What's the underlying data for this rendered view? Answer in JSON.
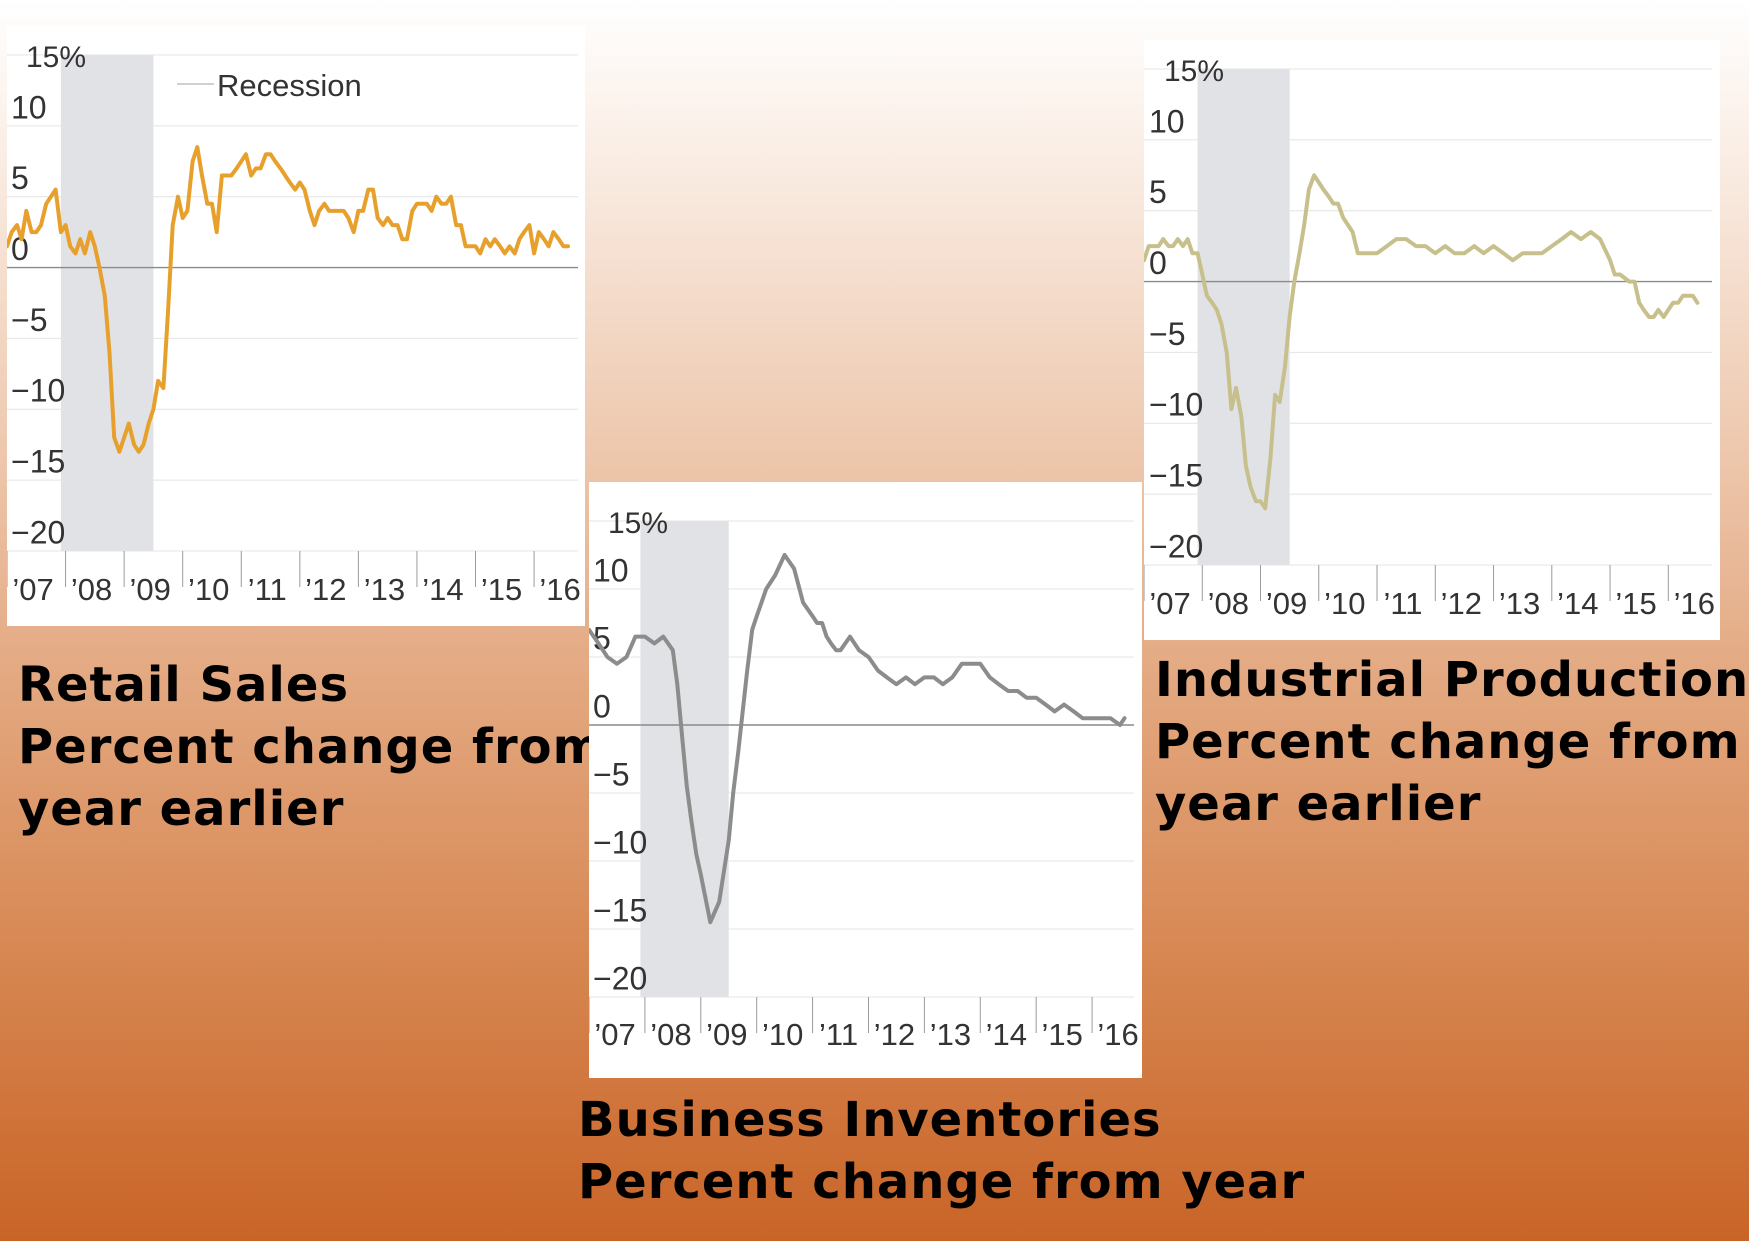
{
  "colors": {
    "retail": "#e8a02c",
    "inventories": "#8c8c8c",
    "industrial": "#c8c08c",
    "recession_band": "#e1e2e5",
    "grid": "#e4e4e4",
    "zero_line": "#8a8a8a"
  },
  "chart_data": [
    {
      "id": "retail",
      "type": "line",
      "title_lines": [
        "Retail Sales",
        "Percent change from",
        "year earlier"
      ],
      "y_unit": "%",
      "ylim": [
        -20,
        15
      ],
      "yticks": [
        15,
        10,
        5,
        0,
        -5,
        -10,
        -15,
        -20
      ],
      "ytick_labels": [
        "15%",
        "10",
        "5",
        "0",
        "−5",
        "−10",
        "−15",
        "−20"
      ],
      "xlim": [
        2007.0,
        2016.75
      ],
      "xticks": [
        2007,
        2008,
        2009,
        2010,
        2011,
        2012,
        2013,
        2014,
        2015,
        2016
      ],
      "xtick_labels": [
        "’07",
        "’08",
        "’09",
        "’10",
        "’11",
        "’12",
        "’13",
        "’14",
        "’15",
        "’16"
      ],
      "recession": {
        "label": "Recession",
        "start": 2007.92,
        "end": 2009.5
      },
      "grid": true,
      "series": [
        {
          "color": "#e8a02c",
          "x": [
            2007.0,
            2007.08,
            2007.17,
            2007.25,
            2007.33,
            2007.42,
            2007.5,
            2007.58,
            2007.67,
            2007.75,
            2007.83,
            2007.92,
            2008.0,
            2008.08,
            2008.17,
            2008.25,
            2008.33,
            2008.42,
            2008.5,
            2008.58,
            2008.67,
            2008.75,
            2008.83,
            2008.92,
            2009.0,
            2009.08,
            2009.17,
            2009.25,
            2009.33,
            2009.42,
            2009.5,
            2009.58,
            2009.67,
            2009.75,
            2009.83,
            2009.92,
            2010.0,
            2010.08,
            2010.17,
            2010.25,
            2010.33,
            2010.42,
            2010.5,
            2010.58,
            2010.67,
            2010.75,
            2010.83,
            2010.92,
            2011.0,
            2011.08,
            2011.17,
            2011.25,
            2011.33,
            2011.42,
            2011.5,
            2011.58,
            2011.67,
            2011.75,
            2011.83,
            2011.92,
            2012.0,
            2012.08,
            2012.17,
            2012.25,
            2012.33,
            2012.42,
            2012.5,
            2012.58,
            2012.67,
            2012.75,
            2012.83,
            2012.92,
            2013.0,
            2013.08,
            2013.17,
            2013.25,
            2013.33,
            2013.42,
            2013.5,
            2013.58,
            2013.67,
            2013.75,
            2013.83,
            2013.92,
            2014.0,
            2014.08,
            2014.17,
            2014.25,
            2014.33,
            2014.42,
            2014.5,
            2014.58,
            2014.67,
            2014.75,
            2014.83,
            2014.92,
            2015.0,
            2015.08,
            2015.17,
            2015.25,
            2015.33,
            2015.42,
            2015.5,
            2015.58,
            2015.67,
            2015.75,
            2015.83,
            2015.92,
            2016.0,
            2016.08,
            2016.17,
            2016.25,
            2016.33,
            2016.42,
            2016.5,
            2016.58
          ],
          "y": [
            1.5,
            2.5,
            3.0,
            2.0,
            4.0,
            2.5,
            2.5,
            3.0,
            4.5,
            5.0,
            5.5,
            2.5,
            3.0,
            1.5,
            1.0,
            2.0,
            1.0,
            2.5,
            1.5,
            0.0,
            -2.0,
            -6.0,
            -12.0,
            -13.0,
            -12.0,
            -11.0,
            -12.5,
            -13.0,
            -12.5,
            -11.0,
            -10.0,
            -8.0,
            -8.5,
            -3.0,
            3.0,
            5.0,
            3.5,
            4.0,
            7.5,
            8.5,
            6.5,
            4.5,
            4.5,
            2.5,
            6.5,
            6.5,
            6.5,
            7.0,
            7.5,
            8.0,
            6.5,
            7.0,
            7.0,
            8.0,
            8.0,
            7.5,
            7.0,
            6.5,
            6.0,
            5.5,
            6.0,
            5.5,
            4.0,
            3.0,
            4.0,
            4.5,
            4.0,
            4.0,
            4.0,
            4.0,
            3.5,
            2.5,
            4.0,
            4.0,
            5.5,
            5.5,
            3.5,
            3.0,
            3.5,
            3.0,
            3.0,
            2.0,
            2.0,
            4.0,
            4.5,
            4.5,
            4.5,
            4.0,
            5.0,
            4.5,
            4.5,
            5.0,
            3.0,
            3.0,
            1.5,
            1.5,
            1.5,
            1.0,
            2.0,
            1.5,
            2.0,
            1.5,
            1.0,
            1.5,
            1.0,
            2.0,
            2.5,
            3.0,
            1.0,
            2.5,
            2.0,
            1.5,
            2.5,
            2.0,
            1.5,
            1.5
          ]
        }
      ]
    },
    {
      "id": "inventories",
      "type": "line",
      "title_lines": [
        "Business Inventories",
        "Percent change from year"
      ],
      "y_unit": "%",
      "ylim": [
        -20,
        15
      ],
      "yticks": [
        15,
        10,
        5,
        0,
        -5,
        -10,
        -15,
        -20
      ],
      "ytick_labels": [
        "15%",
        "10",
        "5",
        "0",
        "−5",
        "−10",
        "−15",
        "−20"
      ],
      "xlim": [
        2007.0,
        2016.75
      ],
      "xticks": [
        2007,
        2008,
        2009,
        2010,
        2011,
        2012,
        2013,
        2014,
        2015,
        2016
      ],
      "xtick_labels": [
        "’07",
        "’08",
        "’09",
        "’10",
        "’11",
        "’12",
        "’13",
        "’14",
        "’15",
        "’16"
      ],
      "recession": {
        "label": "",
        "start": 2007.92,
        "end": 2009.5
      },
      "grid": true,
      "series": [
        {
          "color": "#8c8c8c",
          "x": [
            2007.0,
            2007.17,
            2007.33,
            2007.5,
            2007.67,
            2007.83,
            2008.0,
            2008.17,
            2008.33,
            2008.5,
            2008.58,
            2008.67,
            2008.75,
            2008.83,
            2008.92,
            2009.0,
            2009.17,
            2009.33,
            2009.5,
            2009.58,
            2009.67,
            2009.75,
            2009.83,
            2009.92,
            2010.0,
            2010.17,
            2010.33,
            2010.5,
            2010.67,
            2010.83,
            2011.0,
            2011.08,
            2011.17,
            2011.25,
            2011.33,
            2011.42,
            2011.5,
            2011.67,
            2011.83,
            2012.0,
            2012.17,
            2012.33,
            2012.5,
            2012.67,
            2012.83,
            2013.0,
            2013.17,
            2013.33,
            2013.5,
            2013.67,
            2013.83,
            2014.0,
            2014.17,
            2014.33,
            2014.5,
            2014.67,
            2014.83,
            2015.0,
            2015.17,
            2015.33,
            2015.5,
            2015.67,
            2015.83,
            2016.0,
            2016.17,
            2016.33,
            2016.5,
            2016.58
          ],
          "y": [
            7.0,
            6.0,
            5.0,
            4.5,
            5.0,
            6.5,
            6.5,
            6.0,
            6.5,
            5.5,
            3.0,
            -1.0,
            -4.5,
            -7.0,
            -9.5,
            -11.0,
            -14.5,
            -13.0,
            -8.5,
            -5.0,
            -2.0,
            1.0,
            4.0,
            7.0,
            8.0,
            10.0,
            11.0,
            12.5,
            11.5,
            9.0,
            8.0,
            7.5,
            7.5,
            6.5,
            6.0,
            5.5,
            5.5,
            6.5,
            5.5,
            5.0,
            4.0,
            3.5,
            3.0,
            3.5,
            3.0,
            3.5,
            3.5,
            3.0,
            3.5,
            4.5,
            4.5,
            4.5,
            3.5,
            3.0,
            2.5,
            2.5,
            2.0,
            2.0,
            1.5,
            1.0,
            1.5,
            1.0,
            0.5,
            0.5,
            0.5,
            0.5,
            0.0,
            0.5
          ]
        }
      ]
    },
    {
      "id": "industrial",
      "type": "line",
      "title_lines": [
        "Industrial Production",
        "Percent change from",
        "year earlier"
      ],
      "y_unit": "%",
      "ylim": [
        -20,
        15
      ],
      "yticks": [
        15,
        10,
        5,
        0,
        -5,
        -10,
        -15,
        -20
      ],
      "ytick_labels": [
        "15%",
        "10",
        "5",
        "0",
        "−5",
        "−10",
        "−15",
        "−20"
      ],
      "xlim": [
        2007.0,
        2016.75
      ],
      "xticks": [
        2007,
        2008,
        2009,
        2010,
        2011,
        2012,
        2013,
        2014,
        2015,
        2016
      ],
      "xtick_labels": [
        "’07",
        "’08",
        "’09",
        "’10",
        "’11",
        "’12",
        "’13",
        "’14",
        "’15",
        "’16"
      ],
      "recession": {
        "label": "",
        "start": 2007.92,
        "end": 2009.5
      },
      "grid": true,
      "series": [
        {
          "color": "#c8c08c",
          "x": [
            2007.0,
            2007.08,
            2007.17,
            2007.25,
            2007.33,
            2007.42,
            2007.5,
            2007.58,
            2007.67,
            2007.75,
            2007.83,
            2007.92,
            2008.0,
            2008.08,
            2008.17,
            2008.25,
            2008.33,
            2008.42,
            2008.5,
            2008.58,
            2008.67,
            2008.75,
            2008.83,
            2008.92,
            2009.0,
            2009.08,
            2009.17,
            2009.25,
            2009.33,
            2009.42,
            2009.5,
            2009.58,
            2009.67,
            2009.75,
            2009.83,
            2009.92,
            2010.0,
            2010.08,
            2010.17,
            2010.25,
            2010.33,
            2010.42,
            2010.5,
            2010.58,
            2010.67,
            2010.75,
            2010.83,
            2010.92,
            2011.0,
            2011.17,
            2011.33,
            2011.5,
            2011.67,
            2011.83,
            2012.0,
            2012.17,
            2012.33,
            2012.5,
            2012.67,
            2012.83,
            2013.0,
            2013.17,
            2013.33,
            2013.5,
            2013.67,
            2013.83,
            2014.0,
            2014.17,
            2014.33,
            2014.5,
            2014.67,
            2014.83,
            2015.0,
            2015.08,
            2015.17,
            2015.33,
            2015.42,
            2015.5,
            2015.58,
            2015.67,
            2015.75,
            2015.83,
            2015.92,
            2016.0,
            2016.08,
            2016.17,
            2016.25,
            2016.33,
            2016.42,
            2016.5
          ],
          "y": [
            1.5,
            2.5,
            2.5,
            2.5,
            3.0,
            2.5,
            2.5,
            3.0,
            2.5,
            3.0,
            2.0,
            2.0,
            0.5,
            -1.0,
            -1.5,
            -2.0,
            -3.0,
            -5.0,
            -9.0,
            -7.5,
            -9.5,
            -13.0,
            -14.5,
            -15.5,
            -15.5,
            -16.0,
            -12.5,
            -8.0,
            -8.5,
            -6.0,
            -2.5,
            0.0,
            2.0,
            4.0,
            6.5,
            7.5,
            7.0,
            6.5,
            6.0,
            5.5,
            5.5,
            4.5,
            4.0,
            3.5,
            2.0,
            2.0,
            2.0,
            2.0,
            2.0,
            2.5,
            3.0,
            3.0,
            2.5,
            2.5,
            2.0,
            2.5,
            2.0,
            2.0,
            2.5,
            2.0,
            2.5,
            2.0,
            1.5,
            2.0,
            2.0,
            2.0,
            2.5,
            3.0,
            3.5,
            3.0,
            3.5,
            3.0,
            1.5,
            0.5,
            0.5,
            0.0,
            0.0,
            -1.5,
            -2.0,
            -2.5,
            -2.5,
            -2.0,
            -2.5,
            -2.0,
            -1.5,
            -1.5,
            -1.0,
            -1.0,
            -1.0,
            -1.5
          ]
        }
      ]
    }
  ]
}
